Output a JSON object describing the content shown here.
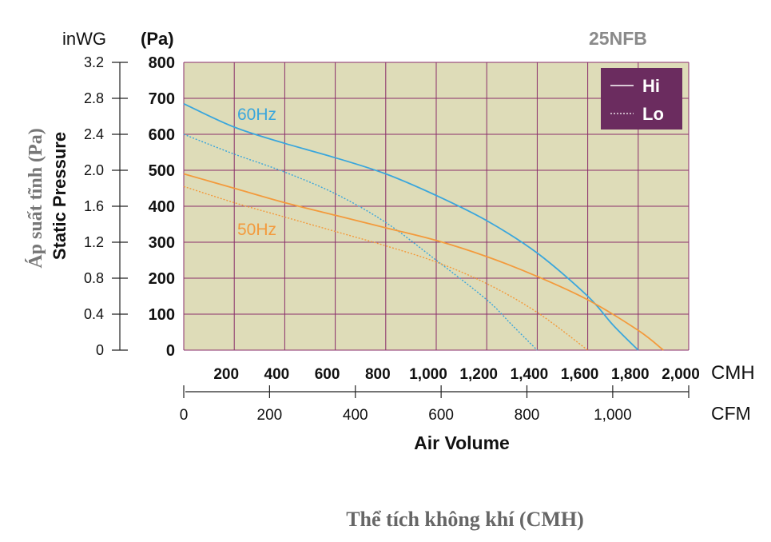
{
  "chart_data": {
    "type": "line",
    "model_label": "25NFB",
    "unit_inwg": "inWG",
    "unit_pa": "(Pa)",
    "ylabel_en": "Static Pressure",
    "ylabel_vi": "Áp suất tĩnh (Pa)",
    "xlabel_en": "Air Volume",
    "xlabel_vi": "Thể tích không khí (CMH)",
    "x_unit_cmh": "CMH",
    "x_unit_cfm": "CFM",
    "xlim_cmh": [
      0,
      2000
    ],
    "ylim_pa": [
      0,
      800
    ],
    "x_ticks_cmh": [
      "200",
      "400",
      "600",
      "800",
      "1,000",
      "1,200",
      "1,400",
      "1,600",
      "1,800",
      "2,000"
    ],
    "x_ticks_cfm": [
      "0",
      "200",
      "400",
      "600",
      "800",
      "1,000"
    ],
    "y_ticks_pa": [
      "0",
      "100",
      "200",
      "300",
      "400",
      "500",
      "600",
      "700",
      "800"
    ],
    "y_ticks_inwg": [
      "0",
      "0.4",
      "0.8",
      "1.2",
      "1.6",
      "2.0",
      "2.4",
      "2.8",
      "3.2"
    ],
    "legend": {
      "hi": "Hi",
      "lo": "Lo"
    },
    "annotations": {
      "hz60": "60Hz",
      "hz50": "50Hz"
    },
    "colors": {
      "hz60": "#3aa6dc",
      "hz50": "#f39a3c",
      "legend_bg": "#6b2c5f",
      "plot_bg": "#dedcb8",
      "grid": "#8a2e6a",
      "model": "#8a8a8a"
    },
    "series": [
      {
        "name": "60Hz Hi",
        "freq": "60Hz",
        "speed": "Hi",
        "x": [
          0,
          200,
          400,
          600,
          800,
          1000,
          1200,
          1400,
          1600,
          1700,
          1800
        ],
        "y": [
          685,
          620,
          575,
          535,
          490,
          430,
          360,
          270,
          150,
          70,
          0
        ]
      },
      {
        "name": "60Hz Lo",
        "freq": "60Hz",
        "speed": "Lo",
        "x": [
          0,
          200,
          400,
          600,
          800,
          1000,
          1200,
          1300,
          1400
        ],
        "y": [
          600,
          545,
          495,
          435,
          355,
          250,
          140,
          70,
          0
        ]
      },
      {
        "name": "50Hz Hi",
        "freq": "50Hz",
        "speed": "Hi",
        "x": [
          0,
          200,
          400,
          600,
          800,
          1000,
          1200,
          1400,
          1600,
          1800,
          1900
        ],
        "y": [
          490,
          450,
          410,
          375,
          340,
          305,
          260,
          205,
          140,
          55,
          0
        ]
      },
      {
        "name": "50Hz Lo",
        "freq": "50Hz",
        "speed": "Lo",
        "x": [
          0,
          200,
          400,
          600,
          800,
          1000,
          1200,
          1400,
          1600
        ],
        "y": [
          455,
          410,
          370,
          330,
          290,
          245,
          185,
          105,
          0
        ]
      }
    ]
  }
}
